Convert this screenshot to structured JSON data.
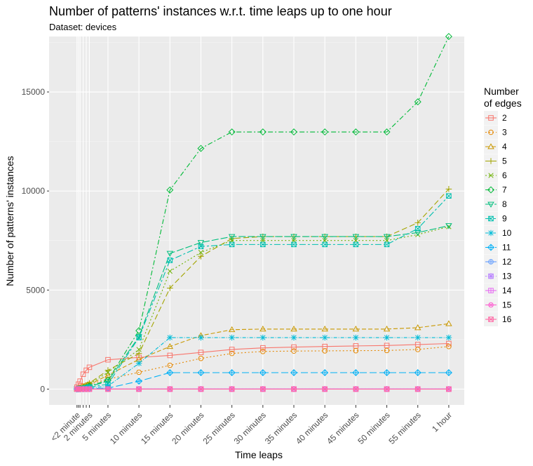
{
  "chart_data": {
    "type": "line",
    "title": "Number of patterns' instances w.r.t. time leaps up to one hour",
    "subtitle": "Dataset: devices",
    "xlabel": "Time leaps",
    "ylabel": "Number of patterns' instances",
    "ylim": [
      -800,
      17800
    ],
    "yticks": [
      0,
      5000,
      10000,
      15000
    ],
    "grid": true,
    "legend_position": "right",
    "legend_title": [
      "Number",
      "of edges"
    ],
    "x_minutes": [
      0,
      0.25,
      0.5,
      1,
      1.5,
      2,
      5,
      10,
      15,
      20,
      25,
      30,
      35,
      40,
      45,
      50,
      55,
      60
    ],
    "x_tick_minutes": [
      0,
      2,
      5,
      10,
      15,
      20,
      25,
      30,
      35,
      40,
      45,
      50,
      55,
      60
    ],
    "x_tick_labels": [
      "<2 minute",
      "2 minutes",
      "5 minutes",
      "10 minutes",
      "15 minutes",
      "20 minutes",
      "25 minutes",
      "30 minutes",
      "35 minutes",
      "40 minutes",
      "45 minutes",
      "50 minutes",
      "55 minutes",
      "1 hour"
    ],
    "series": [
      {
        "name": "2",
        "color": "#F8766D",
        "dash": "",
        "shape": "square",
        "values": [
          100,
          250,
          400,
          750,
          950,
          1100,
          1480,
          1600,
          1700,
          1850,
          2000,
          2080,
          2120,
          2150,
          2180,
          2200,
          2250,
          2300
        ]
      },
      {
        "name": "3",
        "color": "#E58700",
        "dash": "2,3",
        "shape": "circle",
        "values": [
          20,
          50,
          80,
          150,
          200,
          250,
          500,
          850,
          1200,
          1550,
          1800,
          1900,
          1920,
          1930,
          1940,
          1950,
          2000,
          2150
        ]
      },
      {
        "name": "4",
        "color": "#C99800",
        "dash": "6,3",
        "shape": "triangle-up",
        "values": [
          10,
          30,
          60,
          120,
          180,
          230,
          700,
          1500,
          2150,
          2700,
          3000,
          3030,
          3030,
          3030,
          3030,
          3030,
          3100,
          3300
        ]
      },
      {
        "name": "5",
        "color": "#A3A500",
        "dash": "8,4",
        "shape": "plus",
        "values": [
          5,
          20,
          40,
          100,
          180,
          300,
          950,
          1800,
          5100,
          6700,
          7600,
          7700,
          7700,
          7700,
          7700,
          7700,
          8400,
          10100
        ]
      },
      {
        "name": "6",
        "color": "#6BB100",
        "dash": "2,3",
        "shape": "cross",
        "values": [
          5,
          20,
          40,
          80,
          150,
          250,
          850,
          2000,
          5950,
          6900,
          7500,
          7500,
          7500,
          7500,
          7500,
          7500,
          7800,
          8200
        ]
      },
      {
        "name": "7",
        "color": "#00BA38",
        "dash": "7,3,2,3",
        "shape": "diamond",
        "values": [
          5,
          10,
          20,
          40,
          80,
          150,
          450,
          2950,
          10050,
          12150,
          12980,
          12980,
          12980,
          12980,
          12980,
          12980,
          14500,
          17800
        ]
      },
      {
        "name": "8",
        "color": "#00BF7D",
        "dash": "10,3",
        "shape": "triangle-down",
        "values": [
          5,
          10,
          20,
          40,
          80,
          130,
          400,
          2650,
          6850,
          7400,
          7700,
          7700,
          7700,
          7700,
          7700,
          7700,
          7900,
          8250
        ]
      },
      {
        "name": "9",
        "color": "#00C0AF",
        "dash": "9,3,3,3",
        "shape": "square-cross",
        "values": [
          5,
          10,
          15,
          30,
          60,
          100,
          250,
          2600,
          6500,
          7200,
          7300,
          7300,
          7300,
          7300,
          7300,
          7300,
          8100,
          9750
        ]
      },
      {
        "name": "10",
        "color": "#00BCD8",
        "dash": "5,2,1,2",
        "shape": "asterisk",
        "values": [
          3,
          8,
          12,
          20,
          30,
          50,
          150,
          1300,
          2600,
          2600,
          2600,
          2600,
          2600,
          2600,
          2600,
          2600,
          2600,
          2600
        ]
      },
      {
        "name": "11",
        "color": "#00B0F6",
        "dash": "10,4",
        "shape": "diamond-plus",
        "values": [
          2,
          5,
          8,
          10,
          15,
          20,
          50,
          400,
          830,
          830,
          830,
          830,
          830,
          830,
          830,
          830,
          830,
          830
        ]
      },
      {
        "name": "12",
        "color": "#619CFF",
        "dash": "",
        "shape": "circle-plus",
        "values": [
          2,
          3,
          5,
          5,
          5,
          5,
          5,
          5,
          5,
          5,
          5,
          5,
          5,
          5,
          5,
          5,
          5,
          5
        ]
      },
      {
        "name": "13",
        "color": "#B983FF",
        "dash": "2,3",
        "shape": "star",
        "values": [
          2,
          3,
          3,
          3,
          3,
          3,
          3,
          3,
          3,
          3,
          3,
          3,
          3,
          3,
          3,
          3,
          3,
          3
        ]
      },
      {
        "name": "14",
        "color": "#E76BF3",
        "dash": "",
        "shape": "square-plus",
        "values": [
          2,
          2,
          2,
          2,
          2,
          2,
          2,
          2,
          2,
          2,
          2,
          2,
          2,
          2,
          2,
          2,
          2,
          2
        ]
      },
      {
        "name": "15",
        "color": "#FD61D1",
        "dash": "",
        "shape": "circle-cross",
        "values": [
          1,
          1,
          1,
          1,
          1,
          1,
          1,
          1,
          1,
          1,
          1,
          1,
          1,
          1,
          1,
          1,
          1,
          1
        ]
      },
      {
        "name": "16",
        "color": "#FF67A4",
        "dash": "",
        "shape": "square-x",
        "values": [
          1,
          1,
          1,
          1,
          1,
          1,
          1,
          1,
          1,
          1,
          1,
          1,
          1,
          1,
          1,
          1,
          1,
          1
        ]
      }
    ]
  }
}
